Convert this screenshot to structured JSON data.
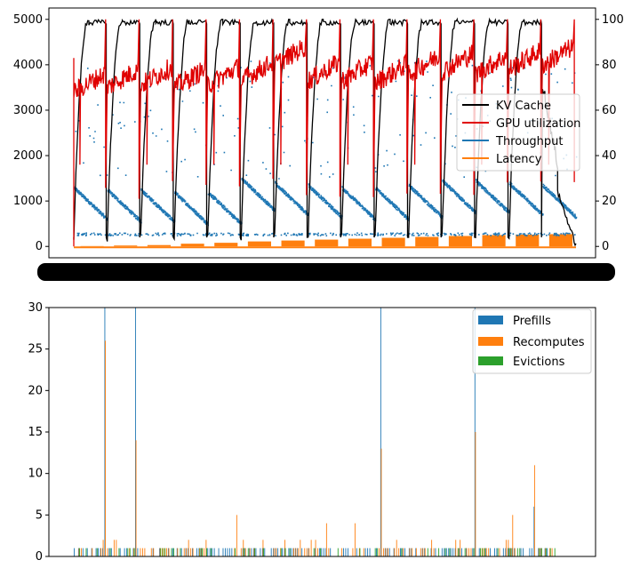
{
  "chart_data": [
    {
      "type": "line",
      "title": "",
      "xlabel": "",
      "ylabel_left": "",
      "ylabel_right": "",
      "ylim_left": [
        -250,
        5250
      ],
      "ylim_right": [
        -5,
        105
      ],
      "yticks_left": [
        "0",
        "1000",
        "2000",
        "3000",
        "4000",
        "5000"
      ],
      "yticks_right": [
        "0",
        "20",
        "40",
        "60",
        "80",
        "100"
      ],
      "grid": false,
      "legend_position": "center-right",
      "legend": [
        {
          "name": "KV Cache",
          "color": "#000000"
        },
        {
          "name": "GPU utilization",
          "color": "#e00000"
        },
        {
          "name": "Throughput",
          "color": "#1f77b4"
        },
        {
          "name": "Latency",
          "color": "#ff7f0e"
        }
      ],
      "cycles": [
        {
          "kv_peak": 5000,
          "gpu_mean": 72,
          "throughput_start": 1300,
          "latency": 8
        },
        {
          "kv_peak": 5000,
          "gpu_mean": 74,
          "throughput_start": 1250,
          "latency": 20
        },
        {
          "kv_peak": 5000,
          "gpu_mean": 75,
          "throughput_start": 1250,
          "latency": 30
        },
        {
          "kv_peak": 5000,
          "gpu_mean": 74,
          "throughput_start": 1200,
          "latency": 60
        },
        {
          "kv_peak": 5000,
          "gpu_mean": 75,
          "throughput_start": 1200,
          "latency": 80
        },
        {
          "kv_peak": 5000,
          "gpu_mean": 77,
          "throughput_start": 1500,
          "latency": 110
        },
        {
          "kv_peak": 5000,
          "gpu_mean": 84,
          "throughput_start": 1400,
          "latency": 130
        },
        {
          "kv_peak": 5000,
          "gpu_mean": 77,
          "throughput_start": 1350,
          "latency": 150
        },
        {
          "kv_peak": 5000,
          "gpu_mean": 77,
          "throughput_start": 1300,
          "latency": 170
        },
        {
          "kv_peak": 5000,
          "gpu_mean": 76,
          "throughput_start": 1300,
          "latency": 190
        },
        {
          "kv_peak": 5000,
          "gpu_mean": 80,
          "throughput_start": 1350,
          "latency": 210
        },
        {
          "kv_peak": 5000,
          "gpu_mean": 81,
          "throughput_start": 1450,
          "latency": 230
        },
        {
          "kv_peak": 5000,
          "gpu_mean": 80,
          "throughput_start": 1450,
          "latency": 250
        },
        {
          "kv_peak": 5000,
          "gpu_mean": 82,
          "throughput_start": 1400,
          "latency": 260
        },
        {
          "kv_peak": 1200,
          "gpu_mean": 84,
          "throughput_start": 1350,
          "latency": 270
        }
      ]
    },
    {
      "type": "bar",
      "title": "",
      "xlabel": "",
      "ylabel": "",
      "ylim": [
        0,
        30
      ],
      "yticks": [
        "0",
        "5",
        "10",
        "15",
        "20",
        "25",
        "30"
      ],
      "grid": false,
      "legend_position": "top-right",
      "legend": [
        {
          "name": "Prefills",
          "color": "#1f77b4"
        },
        {
          "name": "Recomputes",
          "color": "#ff7f0e"
        },
        {
          "name": "Evictions",
          "color": "#2ca02c"
        }
      ],
      "steps": 220,
      "spikes": [
        {
          "step": 14,
          "prefills": 30,
          "recomputes": 26
        },
        {
          "step": 28,
          "prefills": 30,
          "recomputes": 14
        },
        {
          "step": 74,
          "prefills": 0,
          "recomputes": 5
        },
        {
          "step": 115,
          "prefills": 1,
          "recomputes": 4
        },
        {
          "step": 128,
          "prefills": 0,
          "recomputes": 4
        },
        {
          "step": 140,
          "prefills": 30,
          "recomputes": 13
        },
        {
          "step": 183,
          "prefills": 30,
          "recomputes": 15
        },
        {
          "step": 200,
          "prefills": 1,
          "recomputes": 5
        },
        {
          "step": 210,
          "prefills": 6,
          "recomputes": 11
        }
      ]
    }
  ]
}
